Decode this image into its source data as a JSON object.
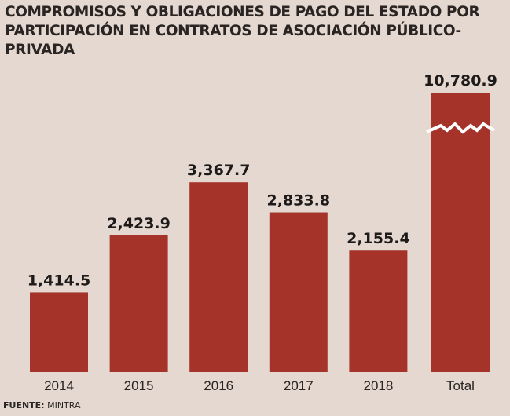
{
  "chart_data": {
    "type": "bar",
    "title": "COMPROMISOS Y OBLIGACIONES DE PAGO DEL ESTADO POR PARTICIPACIÓN EN CONTRATOS DE ASOCIACIÓN PÚBLICO-PRIVADA",
    "categories": [
      "2014",
      "2015",
      "2016",
      "2017",
      "2018",
      "Total"
    ],
    "values": [
      1414.5,
      2423.9,
      3367.7,
      2833.8,
      2155.4,
      10780.9
    ],
    "value_labels": [
      "1,414.5",
      "2,423.9",
      "3,367.7",
      "2,833.8",
      "2,155.4",
      "10,780.9"
    ],
    "axis_break_on": "Total",
    "xlabel": "",
    "ylabel": "",
    "grid": false,
    "legend": "none",
    "bar_color": "#a5332a",
    "break_color": "#ffffff"
  },
  "source": {
    "label": "FUENTE:",
    "value": "MINTRA"
  }
}
